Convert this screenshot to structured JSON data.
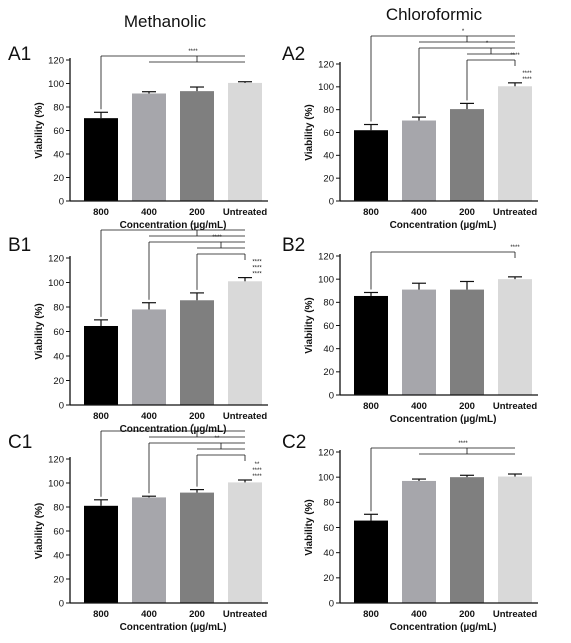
{
  "column_titles": [
    "Methanolic",
    "Chloroformic"
  ],
  "colors": {
    "800": "#000000",
    "400": "#a6a6ab",
    "200": "#7f7f7f",
    "Untreated": "#d9d9d9"
  },
  "chart_data": [
    {
      "panel": "A1",
      "type": "bar",
      "categories": [
        "800",
        "400",
        "200",
        "Untreated"
      ],
      "values": [
        70.5,
        91.5,
        93.5,
        100.5
      ],
      "errors": [
        5,
        1.5,
        3.5,
        1
      ],
      "xlabel": "Concentration (µg/mL)",
      "ylabel": "Viability (%)",
      "ylim": [
        0,
        120
      ],
      "yticks": [
        0,
        20,
        40,
        60,
        80,
        100,
        120
      ],
      "brackets": [
        {
          "from": 0,
          "to": [
            1,
            2,
            3
          ],
          "label": "****"
        }
      ]
    },
    {
      "panel": "A2",
      "type": "bar",
      "categories": [
        "800",
        "400",
        "200",
        "Untreated"
      ],
      "values": [
        62,
        70.5,
        80.5,
        100.5
      ],
      "errors": [
        5,
        3,
        5,
        3
      ],
      "xlabel": "Concentration (µg/mL)",
      "ylabel": "Viability (%)",
      "ylim": [
        0,
        120
      ],
      "yticks": [
        0,
        20,
        40,
        60,
        80,
        100,
        120
      ],
      "brackets": [
        {
          "from": 0,
          "to": [
            1,
            2,
            3
          ],
          "label": "*"
        },
        {
          "from": 1,
          "to": [
            2,
            3
          ],
          "label": "*"
        },
        {
          "from": 2,
          "to": [
            3
          ],
          "label": "****"
        }
      ],
      "side_labels": [
        "****",
        "****"
      ]
    },
    {
      "panel": "B1",
      "type": "bar",
      "categories": [
        "800",
        "400",
        "200",
        "Untreated"
      ],
      "values": [
        64.5,
        78,
        85.5,
        101
      ],
      "errors": [
        5,
        5.5,
        6,
        3
      ],
      "xlabel": "Concentration (µg/mL)",
      "ylabel": "Viability (%)",
      "ylim": [
        0,
        120
      ],
      "yticks": [
        0,
        20,
        40,
        60,
        80,
        100,
        120
      ],
      "brackets": [
        {
          "from": 0,
          "to": [
            1,
            2,
            3
          ],
          "label": "**"
        },
        {
          "from": 1,
          "to": [
            2,
            3
          ],
          "label": "****"
        },
        {
          "from": 2,
          "to": [
            3
          ],
          "label": ""
        }
      ],
      "side_labels": [
        "****",
        "****",
        "****"
      ]
    },
    {
      "panel": "B2",
      "type": "bar",
      "categories": [
        "800",
        "400",
        "200",
        "Untreated"
      ],
      "values": [
        85.5,
        91,
        91,
        100
      ],
      "errors": [
        3,
        5.5,
        7,
        2
      ],
      "xlabel": "Concentration (µg/mL)",
      "ylabel": "Viability (%)",
      "ylim": [
        0,
        120
      ],
      "yticks": [
        0,
        20,
        40,
        60,
        80,
        100,
        120
      ],
      "brackets": [
        {
          "from": 0,
          "to": [
            3
          ],
          "label": "****"
        }
      ]
    },
    {
      "panel": "C1",
      "type": "bar",
      "categories": [
        "800",
        "400",
        "200",
        "Untreated"
      ],
      "values": [
        81,
        88,
        92,
        100.5
      ],
      "errors": [
        5,
        1,
        2.5,
        2
      ],
      "xlabel": "Concentration (µg/mL)",
      "ylabel": "Viability (%)",
      "ylim": [
        0,
        120
      ],
      "yticks": [
        0,
        20,
        40,
        60,
        80,
        100,
        120
      ],
      "brackets": [
        {
          "from": 0,
          "to": [
            1,
            2,
            3
          ],
          "label": "*"
        },
        {
          "from": 1,
          "to": [
            2,
            3
          ],
          "label": "**"
        },
        {
          "from": 2,
          "to": [
            3
          ],
          "label": ""
        }
      ],
      "side_labels": [
        "****",
        "****",
        "**"
      ]
    },
    {
      "panel": "C2",
      "type": "bar",
      "categories": [
        "800",
        "400",
        "200",
        "Untreated"
      ],
      "values": [
        65.5,
        97,
        100,
        100.5
      ],
      "errors": [
        5,
        1.5,
        1.5,
        2
      ],
      "xlabel": "Concentration (µg/mL)",
      "ylabel": "Viability (%)",
      "ylim": [
        0,
        120
      ],
      "yticks": [
        0,
        20,
        40,
        60,
        80,
        100,
        120
      ],
      "brackets": [
        {
          "from": 0,
          "to": [
            1,
            2,
            3
          ],
          "label": "****"
        }
      ]
    }
  ]
}
